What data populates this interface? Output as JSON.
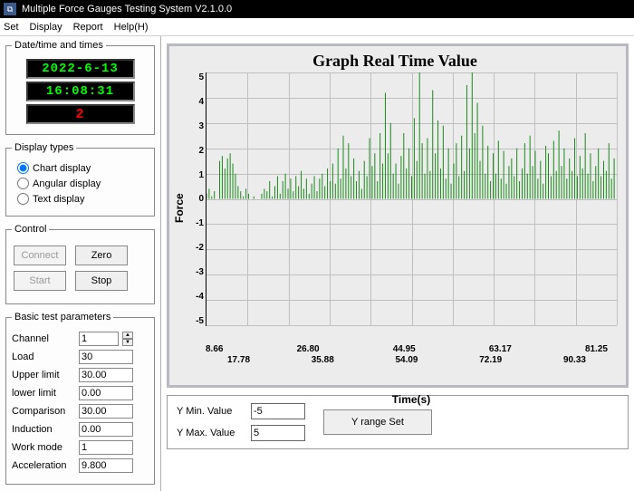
{
  "window": {
    "title": "Multiple Force Gauges Testing System V2.1.0.0"
  },
  "menu": {
    "items": [
      "Set",
      "Display",
      "Report",
      "Help(H)"
    ]
  },
  "datetime_panel": {
    "legend": "Date/time and times",
    "date": "2022-6-13",
    "time": "16:08:31",
    "count": "2",
    "colors": {
      "lcd_bg": "#000000",
      "green": "#00ff00",
      "red": "#ff0000"
    }
  },
  "display_types": {
    "legend": "Display types",
    "options": [
      {
        "label": "Chart display",
        "checked": true
      },
      {
        "label": "Angular display",
        "checked": false
      },
      {
        "label": "Text display",
        "checked": false
      }
    ]
  },
  "control": {
    "legend": "Control",
    "buttons": {
      "connect": {
        "label": "Connect",
        "enabled": false
      },
      "zero": {
        "label": "Zero",
        "enabled": true
      },
      "start": {
        "label": "Start",
        "enabled": false
      },
      "stop": {
        "label": "Stop",
        "enabled": true
      }
    }
  },
  "params": {
    "legend": "Basic test parameters",
    "rows": [
      {
        "key": "channel",
        "label": "Channel",
        "value": "1",
        "spinner": true
      },
      {
        "key": "load",
        "label": "Load",
        "value": "30"
      },
      {
        "key": "upper",
        "label": "Upper limit",
        "value": "30.00"
      },
      {
        "key": "lower",
        "label": "lower limit",
        "value": "0.00"
      },
      {
        "key": "comp",
        "label": "Comparison",
        "value": "30.00"
      },
      {
        "key": "induct",
        "label": "Induction",
        "value": "0.00"
      },
      {
        "key": "workmode",
        "label": "Work mode",
        "value": "1"
      },
      {
        "key": "accel",
        "label": "Acceleration",
        "value": "9.800"
      }
    ]
  },
  "chart": {
    "title": "Graph Real Time Value",
    "ylabel": "Force",
    "xlabel": "Time(s)",
    "ylim": [
      -5,
      5
    ],
    "yticks": [
      "5",
      "4",
      "3",
      "2",
      "1",
      "0",
      "-1",
      "-2",
      "-3",
      "-4",
      "-5"
    ],
    "xticks_top": [
      "8.66",
      "26.80",
      "44.95",
      "63.17",
      "81.25"
    ],
    "xticks_bot": [
      "17.78",
      "35.88",
      "54.09",
      "72.19",
      "90.33"
    ],
    "background": "#ececec",
    "grid_color": "#bfbfbf",
    "line_color": "#1a8a1a",
    "line_width": 1,
    "data": [
      0.2,
      0.4,
      0.1,
      0.3,
      0.0,
      1.5,
      1.7,
      1.2,
      1.6,
      1.8,
      1.4,
      1.0,
      0.5,
      0.3,
      0.1,
      0.4,
      0.2,
      0.0,
      0.1,
      0.0,
      0.0,
      0.2,
      0.4,
      0.3,
      0.7,
      0.1,
      0.5,
      0.9,
      0.2,
      0.7,
      1.0,
      0.4,
      0.8,
      0.3,
      0.9,
      0.5,
      1.1,
      0.4,
      0.8,
      0.2,
      0.6,
      0.9,
      0.3,
      0.8,
      1.0,
      0.5,
      1.2,
      0.7,
      1.4,
      0.6,
      2.0,
      0.8,
      2.5,
      1.2,
      2.2,
      0.9,
      1.6,
      0.7,
      1.1,
      0.4,
      1.5,
      0.9,
      2.4,
      1.3,
      1.8,
      0.7,
      2.6,
      1.4,
      4.2,
      1.8,
      3.0,
      1.0,
      1.4,
      0.6,
      1.7,
      2.6,
      1.2,
      2.0,
      0.9,
      3.2,
      1.5,
      5.0,
      2.2,
      1.0,
      2.4,
      1.1,
      4.3,
      1.8,
      3.1,
      1.2,
      2.9,
      0.8,
      2.0,
      0.6,
      1.4,
      2.2,
      0.9,
      2.5,
      1.1,
      4.5,
      2.0,
      5.0,
      2.6,
      3.8,
      1.5,
      2.9,
      1.0,
      2.1,
      0.7,
      1.8,
      1.0,
      2.3,
      0.8,
      1.9,
      0.6,
      1.3,
      1.6,
      0.9,
      2.0,
      0.7,
      1.2,
      2.2,
      1.0,
      2.5,
      1.3,
      1.9,
      0.8,
      1.5,
      0.6,
      2.1,
      1.8,
      0.9,
      2.3,
      1.1,
      2.7,
      1.3,
      2.0,
      0.8,
      1.6,
      1.1,
      2.4,
      0.9,
      1.7,
      1.2,
      2.6,
      1.0,
      1.8,
      0.7,
      1.3,
      2.0,
      0.9,
      1.5,
      1.1,
      2.2,
      0.8,
      1.6
    ]
  },
  "yrange": {
    "min_label": "Y Min. Value",
    "max_label": "Y Max. Value",
    "min_value": "-5",
    "max_value": "5",
    "button": "Y range Set"
  }
}
